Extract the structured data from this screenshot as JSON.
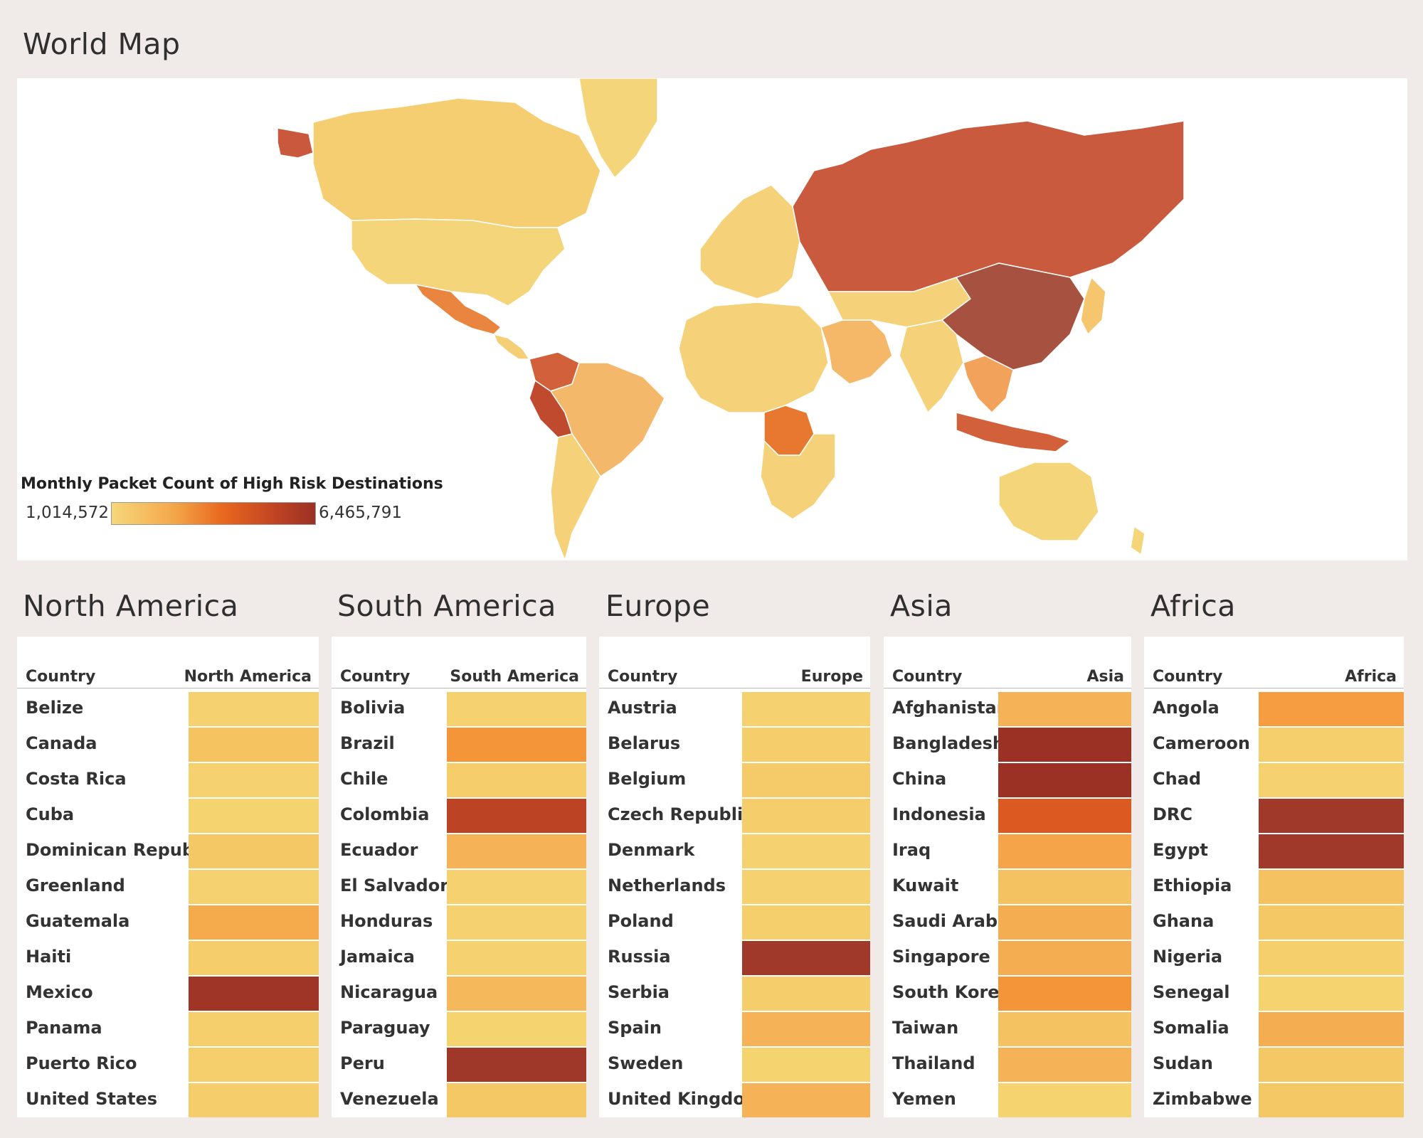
{
  "map": {
    "title": "World Map",
    "legend": {
      "title": "Monthly Packet Count of High Risk Destinations",
      "min_label": "1,014,572",
      "max_label": "6,465,791",
      "min_value": 1014572,
      "max_value": 6465791,
      "colors": [
        "#f6d77a",
        "#f4a84a",
        "#e8671d",
        "#c04423",
        "#9b3125"
      ]
    },
    "regions": [
      {
        "name": "Alaska",
        "color": "#c9583c"
      },
      {
        "name": "Canada",
        "color": "#f5ce72"
      },
      {
        "name": "United States",
        "color": "#f5d57a"
      },
      {
        "name": "Mexico",
        "color": "#ea8540"
      },
      {
        "name": "Central America",
        "color": "#f5cf75"
      },
      {
        "name": "Greenland",
        "color": "#f5d57a"
      },
      {
        "name": "Colombia",
        "color": "#d2603a"
      },
      {
        "name": "Peru",
        "color": "#c04a2e"
      },
      {
        "name": "Brazil",
        "color": "#f4b86a"
      },
      {
        "name": "Southern South America",
        "color": "#f5d27a"
      },
      {
        "name": "Europe",
        "color": "#f5d27a"
      },
      {
        "name": "Russia",
        "color": "#c95a3d"
      },
      {
        "name": "North Africa",
        "color": "#f5d27a"
      },
      {
        "name": "DRC",
        "color": "#e8782f"
      },
      {
        "name": "Southern Africa",
        "color": "#f5d27a"
      },
      {
        "name": "Middle East",
        "color": "#f4b868"
      },
      {
        "name": "Central Asia",
        "color": "#f5d27a"
      },
      {
        "name": "China",
        "color": "#a75240"
      },
      {
        "name": "India",
        "color": "#f5d27a"
      },
      {
        "name": "Southeast Asia",
        "color": "#f2a25a"
      },
      {
        "name": "Indonesia",
        "color": "#d2603a"
      },
      {
        "name": "Australia",
        "color": "#f5d57a"
      },
      {
        "name": "Japan",
        "color": "#f5c66e"
      },
      {
        "name": "New Zealand",
        "color": "#f5d57a"
      }
    ]
  },
  "tables": [
    {
      "title": "North America",
      "col_country": "Country",
      "col_region": "North America",
      "rows": [
        {
          "country": "Belize",
          "color": "#f5d26f"
        },
        {
          "country": "Canada",
          "color": "#f5c461"
        },
        {
          "country": "Costa Rica",
          "color": "#f5d26f"
        },
        {
          "country": "Cuba",
          "color": "#f5d470"
        },
        {
          "country": "Dominican Republic",
          "color": "#f5c866"
        },
        {
          "country": "Greenland",
          "color": "#f5d26f"
        },
        {
          "country": "Guatemala",
          "color": "#f5aa4c"
        },
        {
          "country": "Haiti",
          "color": "#f5cd6a"
        },
        {
          "country": "Mexico",
          "color": "#9e3526"
        },
        {
          "country": "Panama",
          "color": "#f5cf6c"
        },
        {
          "country": "Puerto Rico",
          "color": "#f5cf6c"
        },
        {
          "country": "United States",
          "color": "#f5cd6a"
        }
      ]
    },
    {
      "title": "South America",
      "col_country": "Country",
      "col_region": "South America",
      "rows": [
        {
          "country": "Bolivia",
          "color": "#f5d26f"
        },
        {
          "country": "Brazil",
          "color": "#f59539"
        },
        {
          "country": "Chile",
          "color": "#f5cd6a"
        },
        {
          "country": "Colombia",
          "color": "#bc4424"
        },
        {
          "country": "Ecuador",
          "color": "#f5b257"
        },
        {
          "country": "El Salvador",
          "color": "#f5d26f"
        },
        {
          "country": "Honduras",
          "color": "#f5d26f"
        },
        {
          "country": "Jamaica",
          "color": "#f5d26f"
        },
        {
          "country": "Nicaragua",
          "color": "#f5b95c"
        },
        {
          "country": "Paraguay",
          "color": "#f5d470"
        },
        {
          "country": "Peru",
          "color": "#a0382a"
        },
        {
          "country": "Venezuela",
          "color": "#f5c866"
        }
      ]
    },
    {
      "title": "Europe",
      "col_country": "Country",
      "col_region": "Europe",
      "rows": [
        {
          "country": "Austria",
          "color": "#f5d26f"
        },
        {
          "country": "Belarus",
          "color": "#f5cd6a"
        },
        {
          "country": "Belgium",
          "color": "#f5ca68"
        },
        {
          "country": "Czech Republic",
          "color": "#f5cd6a"
        },
        {
          "country": "Denmark",
          "color": "#f5d26f"
        },
        {
          "country": "Netherlands",
          "color": "#f5d26f"
        },
        {
          "country": "Poland",
          "color": "#f5cf6c"
        },
        {
          "country": "Russia",
          "color": "#a0392a"
        },
        {
          "country": "Serbia",
          "color": "#f5cd6a"
        },
        {
          "country": "Spain",
          "color": "#f5b257"
        },
        {
          "country": "Sweden",
          "color": "#f5d470"
        },
        {
          "country": "United Kingdom",
          "color": "#f5b257"
        }
      ]
    },
    {
      "title": "Asia",
      "col_country": "Country",
      "col_region": "Asia",
      "rows": [
        {
          "country": "Afghanistan",
          "color": "#f5b257"
        },
        {
          "country": "Bangladesh",
          "color": "#9b3125"
        },
        {
          "country": "China",
          "color": "#9b3125"
        },
        {
          "country": "Indonesia",
          "color": "#dc5a22"
        },
        {
          "country": "Iraq",
          "color": "#f5a44a"
        },
        {
          "country": "Kuwait",
          "color": "#f5c262"
        },
        {
          "country": "Saudi Arabia",
          "color": "#f5ad52"
        },
        {
          "country": "Singapore",
          "color": "#f5ad52"
        },
        {
          "country": "South Korea",
          "color": "#f59539"
        },
        {
          "country": "Taiwan",
          "color": "#f5c262"
        },
        {
          "country": "Thailand",
          "color": "#f5b257"
        },
        {
          "country": "Yemen",
          "color": "#f5d470"
        }
      ]
    },
    {
      "title": "Africa",
      "col_country": "Country",
      "col_region": "Africa",
      "rows": [
        {
          "country": "Angola",
          "color": "#f59d40"
        },
        {
          "country": "Cameroon",
          "color": "#f5cf6c"
        },
        {
          "country": "Chad",
          "color": "#f5d26f"
        },
        {
          "country": "DRC",
          "color": "#a0392a"
        },
        {
          "country": "Egypt",
          "color": "#a0392a"
        },
        {
          "country": "Ethiopia",
          "color": "#f5c262"
        },
        {
          "country": "Ghana",
          "color": "#f5c866"
        },
        {
          "country": "Nigeria",
          "color": "#f5cf6c"
        },
        {
          "country": "Senegal",
          "color": "#f5d470"
        },
        {
          "country": "Somalia",
          "color": "#f5ad52"
        },
        {
          "country": "Sudan",
          "color": "#f5c866"
        },
        {
          "country": "Zimbabwe",
          "color": "#f5c866"
        }
      ]
    }
  ]
}
